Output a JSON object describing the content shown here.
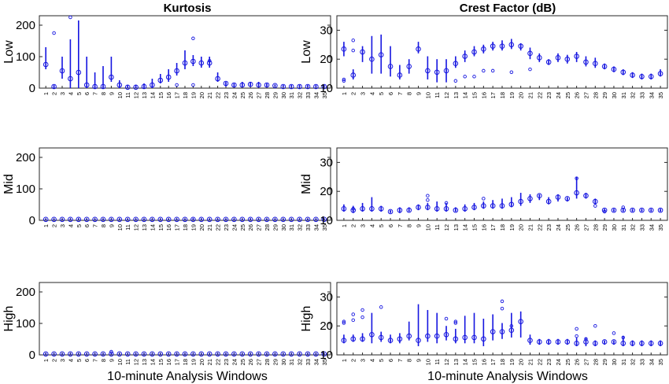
{
  "chart_data": [
    {
      "type": "box",
      "title": "Kurtosis",
      "ylabel": "Low",
      "xlabel": "",
      "ylim": [
        0,
        230
      ],
      "yticks": [
        0,
        100,
        200
      ],
      "categories": [
        "1",
        "2",
        "3",
        "4",
        "5",
        "6",
        "7",
        "8",
        "9",
        "10",
        "11",
        "12",
        "13",
        "14",
        "15",
        "16",
        "17",
        "18",
        "19",
        "20",
        "21",
        "22",
        "23",
        "24",
        "25",
        "26",
        "27",
        "28",
        "29",
        "30",
        "31",
        "32",
        "33",
        "34",
        "35"
      ],
      "median": [
        75,
        5,
        55,
        30,
        50,
        10,
        5,
        5,
        35,
        10,
        3,
        3,
        5,
        10,
        25,
        35,
        55,
        80,
        85,
        80,
        80,
        30,
        15,
        10,
        10,
        12,
        10,
        10,
        8,
        5,
        5,
        5,
        5,
        5,
        5
      ],
      "low": [
        60,
        0,
        30,
        0,
        0,
        0,
        0,
        0,
        20,
        0,
        0,
        0,
        0,
        0,
        15,
        20,
        40,
        60,
        70,
        65,
        65,
        20,
        5,
        5,
        5,
        5,
        5,
        5,
        5,
        3,
        3,
        3,
        3,
        3,
        3
      ],
      "high": [
        130,
        10,
        100,
        155,
        215,
        100,
        50,
        70,
        100,
        25,
        10,
        10,
        15,
        30,
        45,
        60,
        80,
        120,
        105,
        100,
        100,
        50,
        20,
        15,
        20,
        20,
        20,
        15,
        12,
        10,
        10,
        10,
        10,
        10,
        10
      ],
      "outliers": [
        [
          2,
          175
        ],
        [
          4,
          225
        ],
        [
          17,
          10
        ],
        [
          19,
          158
        ],
        [
          19,
          10
        ],
        [
          21,
          87
        ]
      ]
    },
    {
      "type": "box",
      "title": "Crest Factor (dB)",
      "ylabel": "Low",
      "xlabel": "",
      "ylim": [
        10,
        35
      ],
      "yticks": [
        10,
        20,
        30
      ],
      "categories": [
        "1",
        "2",
        "3",
        "4",
        "5",
        "6",
        "7",
        "8",
        "9",
        "10",
        "11",
        "12",
        "13",
        "14",
        "15",
        "16",
        "17",
        "18",
        "19",
        "20",
        "21",
        "22",
        "23",
        "24",
        "25",
        "26",
        "27",
        "28",
        "29",
        "30",
        "31",
        "32",
        "33",
        "34",
        "35"
      ],
      "median": [
        23.5,
        14.5,
        22.5,
        20,
        21.5,
        17.5,
        14.5,
        17.5,
        23.5,
        16,
        15.5,
        16,
        18.5,
        21,
        22.5,
        23.5,
        24.5,
        24.5,
        25,
        24.5,
        22,
        20.5,
        19,
        20.5,
        20,
        21,
        19,
        18.5,
        17.5,
        16.5,
        15.5,
        14.5,
        14,
        14,
        15
      ],
      "low": [
        21,
        13,
        19,
        15,
        15,
        14,
        13,
        15,
        22,
        13,
        12,
        12,
        17,
        19,
        21,
        22,
        23,
        23,
        23.5,
        23,
        20,
        19,
        18,
        19,
        18.5,
        19,
        17.5,
        17,
        16.5,
        15.5,
        14.5,
        13.5,
        13,
        13,
        14
      ],
      "high": [
        26,
        16.5,
        24.5,
        28,
        28.5,
        24.5,
        18,
        20,
        26,
        21,
        20,
        20,
        21,
        23,
        24.5,
        25,
        26,
        26.5,
        27,
        25.5,
        24,
        22,
        20,
        22,
        21.5,
        22.5,
        21,
        20.5,
        18.5,
        17.5,
        16.5,
        15.5,
        15,
        15,
        16.5
      ],
      "outliers": [
        [
          1,
          13
        ],
        [
          1,
          12.5
        ],
        [
          2,
          26.5
        ],
        [
          2,
          23
        ],
        [
          13,
          12.5
        ],
        [
          14,
          14
        ],
        [
          15,
          14
        ],
        [
          16,
          16
        ],
        [
          17,
          16
        ],
        [
          19,
          15.5
        ],
        [
          21,
          16.5
        ]
      ]
    },
    {
      "type": "box",
      "title": "",
      "ylabel": "Mid",
      "xlabel": "",
      "ylim": [
        0,
        230
      ],
      "yticks": [
        0,
        100,
        200
      ],
      "categories": [
        "1",
        "2",
        "3",
        "4",
        "5",
        "6",
        "7",
        "8",
        "9",
        "10",
        "11",
        "12",
        "13",
        "14",
        "15",
        "16",
        "17",
        "18",
        "19",
        "20",
        "21",
        "22",
        "23",
        "24",
        "25",
        "26",
        "27",
        "28",
        "29",
        "30",
        "31",
        "32",
        "33",
        "34",
        "35"
      ],
      "median": [
        3,
        3,
        3,
        3,
        3,
        3,
        3,
        3,
        3,
        3,
        3,
        3,
        3,
        3,
        3,
        3,
        3,
        3,
        3,
        3,
        3,
        3,
        3,
        3,
        3,
        3,
        3,
        3,
        3,
        3,
        3,
        3,
        3,
        3,
        3
      ],
      "low": [
        1,
        1,
        1,
        1,
        1,
        1,
        1,
        1,
        1,
        1,
        1,
        1,
        1,
        1,
        1,
        1,
        1,
        1,
        1,
        1,
        1,
        1,
        1,
        1,
        1,
        1,
        1,
        1,
        1,
        1,
        1,
        1,
        1,
        1,
        1
      ],
      "high": [
        5,
        5,
        5,
        5,
        6,
        5,
        5,
        5,
        5,
        5,
        5,
        5,
        5,
        5,
        5,
        5,
        5,
        5,
        7,
        6,
        5,
        5,
        5,
        5,
        5,
        6,
        5,
        5,
        5,
        5,
        5,
        5,
        5,
        5,
        5
      ],
      "outliers": []
    },
    {
      "type": "box",
      "title": "",
      "ylabel": "Mid",
      "xlabel": "",
      "ylim": [
        10,
        35
      ],
      "yticks": [
        10,
        20,
        30
      ],
      "categories": [
        "1",
        "2",
        "3",
        "4",
        "5",
        "6",
        "7",
        "8",
        "9",
        "10",
        "11",
        "12",
        "13",
        "14",
        "15",
        "16",
        "17",
        "18",
        "19",
        "20",
        "21",
        "22",
        "23",
        "24",
        "25",
        "26",
        "27",
        "28",
        "29",
        "30",
        "31",
        "32",
        "33",
        "34",
        "35"
      ],
      "median": [
        14,
        13.5,
        14,
        14,
        14,
        13,
        13.5,
        13.5,
        14.5,
        14.5,
        14,
        14,
        13.5,
        14,
        14.5,
        15,
        15,
        15,
        15.5,
        16.5,
        17.5,
        18.5,
        16.5,
        18,
        17.5,
        19.5,
        18.5,
        16.5,
        13.5,
        13.5,
        13.5,
        13.5,
        13.5,
        13.5,
        13.5
      ],
      "low": [
        13,
        12.5,
        13,
        13,
        13,
        12.5,
        12.5,
        13,
        13.5,
        13.5,
        13,
        13,
        13,
        13,
        13.5,
        14,
        14,
        14,
        14.5,
        15,
        16,
        17,
        15.5,
        16.5,
        16.5,
        17.5,
        17.5,
        15.5,
        13,
        13,
        13,
        13,
        13,
        13,
        13
      ],
      "high": [
        15.5,
        15,
        16,
        18,
        15,
        13.5,
        14.5,
        14.5,
        15.5,
        16,
        16.5,
        16,
        14.5,
        15.5,
        16,
        16.5,
        17,
        17.5,
        18,
        19.5,
        19,
        19,
        18,
        19,
        18,
        25,
        19.5,
        17.5,
        14,
        14,
        14,
        14,
        14,
        14,
        14
      ],
      "outliers": [
        [
          2,
          14
        ],
        [
          10,
          18.5
        ],
        [
          10,
          17
        ],
        [
          12,
          16
        ],
        [
          16,
          17.5
        ],
        [
          26,
          24.5
        ],
        [
          28,
          15
        ],
        [
          29,
          13
        ],
        [
          31,
          14.5
        ]
      ]
    },
    {
      "type": "box",
      "title": "",
      "ylabel": "High",
      "xlabel": "10-minute Analysis Windows",
      "ylim": [
        0,
        230
      ],
      "yticks": [
        0,
        100,
        200
      ],
      "categories": [
        "1",
        "2",
        "3",
        "4",
        "5",
        "6",
        "7",
        "8",
        "9",
        "10",
        "11",
        "12",
        "13",
        "14",
        "15",
        "16",
        "17",
        "18",
        "19",
        "20",
        "21",
        "22",
        "23",
        "24",
        "25",
        "26",
        "27",
        "28",
        "29",
        "30",
        "31",
        "32",
        "33",
        "34",
        "35"
      ],
      "median": [
        3,
        3,
        3,
        3,
        3,
        3,
        3,
        3,
        3,
        3,
        3,
        3,
        3,
        3,
        3,
        3,
        3,
        3,
        3,
        3,
        3,
        3,
        3,
        3,
        3,
        3,
        3,
        3,
        3,
        3,
        3,
        3,
        3,
        3,
        3
      ],
      "low": [
        1,
        1,
        1,
        1,
        1,
        1,
        1,
        1,
        1,
        1,
        1,
        1,
        1,
        1,
        1,
        1,
        1,
        1,
        1,
        1,
        1,
        1,
        1,
        1,
        1,
        1,
        1,
        1,
        1,
        1,
        1,
        1,
        1,
        1,
        1
      ],
      "high": [
        6,
        5,
        5,
        5,
        5,
        5,
        5,
        5,
        6,
        5,
        5,
        5,
        5,
        5,
        5,
        5,
        5,
        5,
        5,
        5,
        5,
        5,
        5,
        5,
        5,
        5,
        5,
        5,
        5,
        5,
        5,
        5,
        5,
        5,
        5
      ],
      "outliers": [
        [
          9,
          10
        ]
      ]
    },
    {
      "type": "box",
      "title": "",
      "ylabel": "High",
      "xlabel": "10-minute Analysis Windows",
      "ylim": [
        10,
        35
      ],
      "yticks": [
        10,
        20,
        30
      ],
      "categories": [
        "1",
        "2",
        "3",
        "4",
        "5",
        "6",
        "7",
        "8",
        "9",
        "10",
        "11",
        "12",
        "13",
        "14",
        "15",
        "16",
        "17",
        "18",
        "19",
        "20",
        "21",
        "22",
        "23",
        "24",
        "25",
        "26",
        "27",
        "28",
        "29",
        "30",
        "31",
        "32",
        "33",
        "34",
        "35"
      ],
      "median": [
        15,
        15.5,
        15.5,
        17,
        16,
        15,
        15.5,
        16.5,
        15,
        16.5,
        16.5,
        17,
        15.5,
        16,
        16,
        15.5,
        18,
        18,
        18.5,
        21.5,
        15,
        14.5,
        14.5,
        14.5,
        14.5,
        14,
        14.5,
        14,
        14.5,
        14.5,
        14,
        14,
        14,
        14,
        14
      ],
      "low": [
        14,
        14.5,
        14.5,
        14,
        14.5,
        14,
        14,
        15,
        13,
        14.5,
        14,
        15,
        14,
        14,
        14,
        13,
        15,
        15.5,
        16,
        16,
        13.5,
        13.5,
        13.5,
        13.5,
        13.5,
        13,
        13,
        13,
        13.5,
        13.5,
        13,
        13,
        13,
        13,
        13
      ],
      "high": [
        17,
        17,
        17.5,
        24.5,
        18,
        17,
        17.5,
        21.5,
        27.5,
        25.5,
        24.5,
        20,
        19,
        23.5,
        24.5,
        22.5,
        24,
        21,
        24.5,
        25,
        17,
        15.5,
        15.5,
        15.5,
        15.5,
        16,
        16,
        15,
        15,
        15,
        16.5,
        15,
        15,
        15,
        15
      ],
      "outliers": [
        [
          1,
          21
        ],
        [
          1,
          21.5
        ],
        [
          2,
          24
        ],
        [
          2,
          22
        ],
        [
          3,
          25.5
        ],
        [
          3,
          23
        ],
        [
          5,
          26.5
        ],
        [
          12,
          22.5
        ],
        [
          13,
          21
        ],
        [
          13,
          21.5
        ],
        [
          18,
          28.5
        ],
        [
          18,
          26
        ],
        [
          19,
          20
        ],
        [
          26,
          19
        ],
        [
          26,
          16.5
        ],
        [
          27,
          15.5
        ],
        [
          28,
          20
        ],
        [
          30,
          17.5
        ],
        [
          31,
          16
        ]
      ]
    }
  ]
}
